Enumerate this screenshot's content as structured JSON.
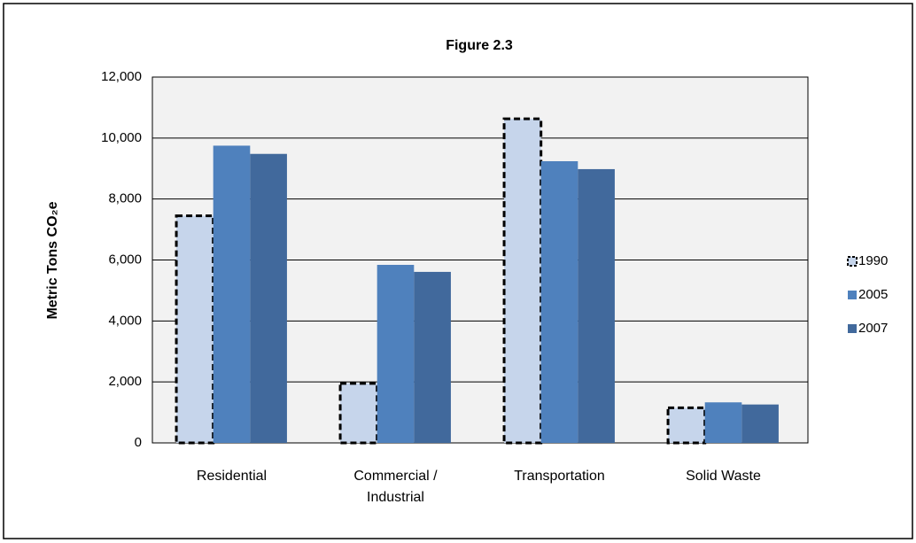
{
  "chart_data": {
    "type": "bar",
    "title": "Figure 2.3",
    "y_label": "Metric  Tons CO₂e",
    "categories": [
      "Residential",
      "Commercial / Industrial",
      "Transportation",
      "Solid Waste"
    ],
    "series": [
      {
        "name": "1990",
        "color": "#c6d5eb",
        "dashed": true,
        "values": [
          7450,
          1950,
          10630,
          1150
        ]
      },
      {
        "name": "2005",
        "color": "#4f81bd",
        "dashed": false,
        "values": [
          9750,
          5840,
          9240,
          1330
        ]
      },
      {
        "name": "2007",
        "color": "#41699c",
        "dashed": false,
        "values": [
          9480,
          5610,
          8980,
          1260
        ]
      }
    ],
    "ylim": [
      0,
      12000
    ],
    "yticks": [
      0,
      {
        "value": 2000,
        "label": "2,000"
      },
      {
        "value": 4000,
        "label": "4,000"
      },
      {
        "value": 6000,
        "label": "6,000"
      },
      {
        "value": 8000,
        "label": "8,000"
      },
      {
        "value": 10000,
        "label": "10,000"
      },
      {
        "value": 12000,
        "label": "12,000"
      }
    ],
    "grid": true,
    "legend": "right"
  }
}
